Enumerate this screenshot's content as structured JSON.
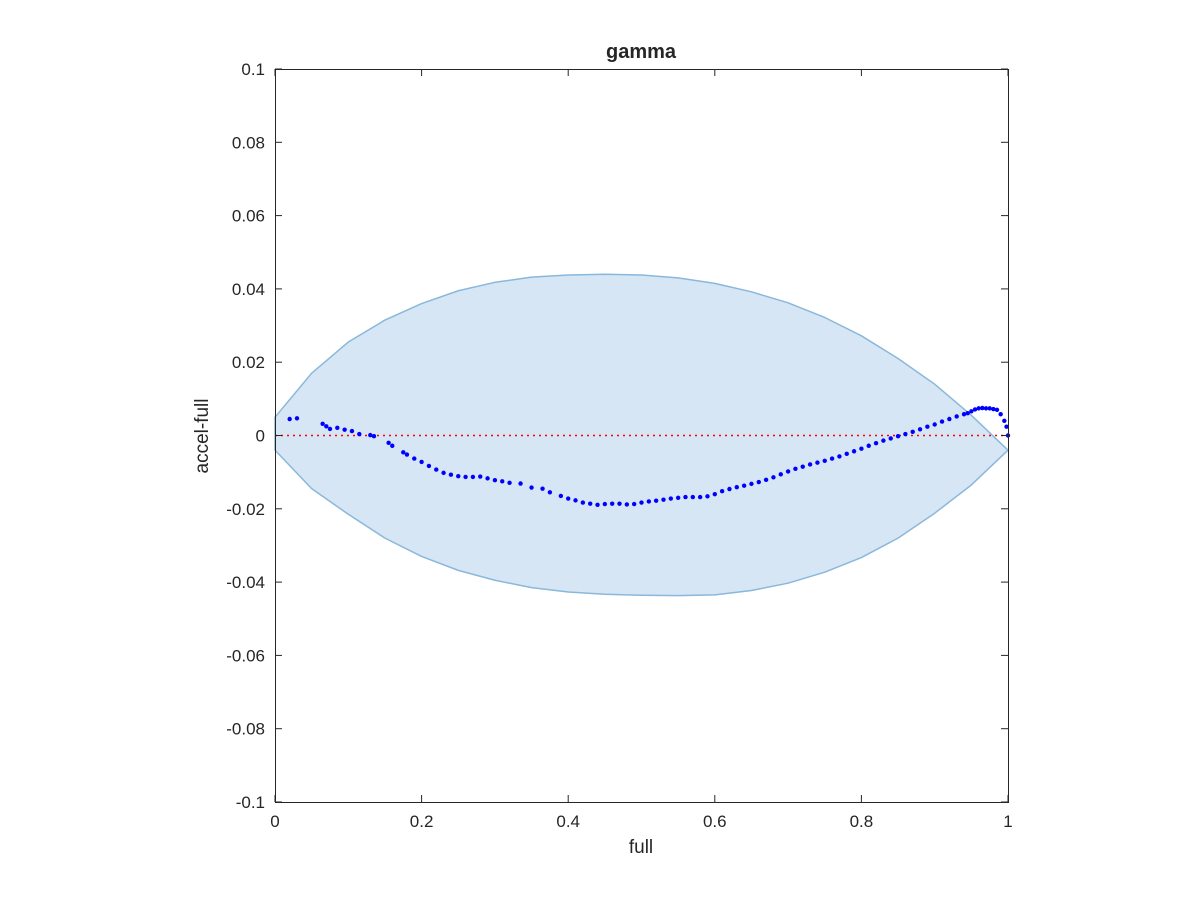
{
  "chart_data": {
    "type": "scatter",
    "title": "gamma",
    "xlabel": "full",
    "ylabel": "accel-full",
    "xlim": [
      0,
      1
    ],
    "ylim": [
      -0.1,
      0.1
    ],
    "xticks": [
      0,
      0.2,
      0.4,
      0.6,
      0.8,
      1
    ],
    "xtick_labels": [
      "0",
      "0.2",
      "0.4",
      "0.6",
      "0.8",
      "1"
    ],
    "yticks": [
      -0.1,
      -0.08,
      -0.06,
      -0.04,
      -0.02,
      0,
      0.02,
      0.04,
      0.06,
      0.08,
      0.1
    ],
    "ytick_labels": [
      "-0.1",
      "-0.08",
      "-0.06",
      "-0.04",
      "-0.02",
      "0",
      "0.02",
      "0.04",
      "0.06",
      "0.08",
      "0.1"
    ],
    "grid": false,
    "legend": "none",
    "colors": {
      "points": "#0000ff",
      "ellipse_fill": "#d6e6f4",
      "ellipse_edge": "#8ab8db",
      "zero_line": "#ff0000",
      "axes": "#262626"
    },
    "ellipse": {
      "x": [
        0.0,
        0.05,
        0.1,
        0.15,
        0.2,
        0.25,
        0.3,
        0.35,
        0.4,
        0.45,
        0.5,
        0.55,
        0.6,
        0.65,
        0.7,
        0.75,
        0.8,
        0.85,
        0.9,
        0.95,
        1.0
      ],
      "upper": [
        0.005,
        0.017,
        0.0255,
        0.0315,
        0.036,
        0.0395,
        0.0418,
        0.0432,
        0.0438,
        0.044,
        0.0438,
        0.043,
        0.0415,
        0.0392,
        0.0362,
        0.0322,
        0.0272,
        0.021,
        0.014,
        0.0055,
        -0.004
      ],
      "lower": [
        -0.004,
        -0.0145,
        -0.0215,
        -0.028,
        -0.033,
        -0.0368,
        -0.0395,
        -0.0415,
        -0.0427,
        -0.0433,
        -0.0436,
        -0.0437,
        -0.0435,
        -0.0423,
        -0.0403,
        -0.0373,
        -0.0333,
        -0.028,
        -0.0212,
        -0.0135,
        -0.004
      ]
    },
    "zero_line": {
      "y": 0,
      "style": "dotted"
    },
    "series": [
      {
        "x": [
          0.02,
          0.03,
          0.065,
          0.07,
          0.075,
          0.085,
          0.095,
          0.105,
          0.115,
          0.13,
          0.135,
          0.155,
          0.16,
          0.175,
          0.18,
          0.19,
          0.2,
          0.21,
          0.22,
          0.23,
          0.24,
          0.25,
          0.26,
          0.27,
          0.28,
          0.29,
          0.3,
          0.31,
          0.32,
          0.335,
          0.35,
          0.365,
          0.375,
          0.39,
          0.4,
          0.41,
          0.42,
          0.43,
          0.44,
          0.45,
          0.46,
          0.47,
          0.48,
          0.49,
          0.5,
          0.51,
          0.52,
          0.53,
          0.54,
          0.55,
          0.56,
          0.57,
          0.58,
          0.59,
          0.6,
          0.61,
          0.62,
          0.63,
          0.64,
          0.65,
          0.66,
          0.67,
          0.68,
          0.69,
          0.7,
          0.71,
          0.72,
          0.73,
          0.74,
          0.75,
          0.76,
          0.77,
          0.78,
          0.79,
          0.8,
          0.81,
          0.82,
          0.83,
          0.84,
          0.85,
          0.86,
          0.87,
          0.88,
          0.89,
          0.9,
          0.91,
          0.92,
          0.93,
          0.94,
          0.945,
          0.95,
          0.955,
          0.96,
          0.965,
          0.97,
          0.975,
          0.98,
          0.985,
          0.99,
          0.995,
          0.998,
          1.0
        ],
        "y": [
          0.0045,
          0.0047,
          0.0032,
          0.0025,
          0.0018,
          0.0021,
          0.0016,
          0.0012,
          0.0004,
          0.0001,
          -0.0002,
          -0.002,
          -0.0028,
          -0.0046,
          -0.0052,
          -0.0063,
          -0.0072,
          -0.0083,
          -0.0093,
          -0.0102,
          -0.0107,
          -0.0111,
          -0.0113,
          -0.0113,
          -0.0112,
          -0.0117,
          -0.0122,
          -0.0125,
          -0.0129,
          -0.0131,
          -0.0142,
          -0.0145,
          -0.0155,
          -0.0165,
          -0.0172,
          -0.0177,
          -0.0183,
          -0.0186,
          -0.0189,
          -0.0187,
          -0.0186,
          -0.0186,
          -0.0188,
          -0.0187,
          -0.0183,
          -0.018,
          -0.0178,
          -0.0175,
          -0.0172,
          -0.017,
          -0.0168,
          -0.0168,
          -0.0168,
          -0.0166,
          -0.016,
          -0.0152,
          -0.0146,
          -0.0141,
          -0.0137,
          -0.0132,
          -0.0127,
          -0.0121,
          -0.0114,
          -0.0106,
          -0.0098,
          -0.0091,
          -0.0085,
          -0.0079,
          -0.0074,
          -0.0069,
          -0.0063,
          -0.0057,
          -0.005,
          -0.0043,
          -0.0036,
          -0.0028,
          -0.0021,
          -0.0014,
          -0.0008,
          -0.0002,
          0.0004,
          0.001,
          0.0017,
          0.0024,
          0.003,
          0.0038,
          0.0045,
          0.0052,
          0.0058,
          0.0061,
          0.0066,
          0.0071,
          0.0074,
          0.0075,
          0.0074,
          0.0074,
          0.0072,
          0.007,
          0.0058,
          0.004,
          0.0024,
          0.0
        ]
      }
    ]
  }
}
